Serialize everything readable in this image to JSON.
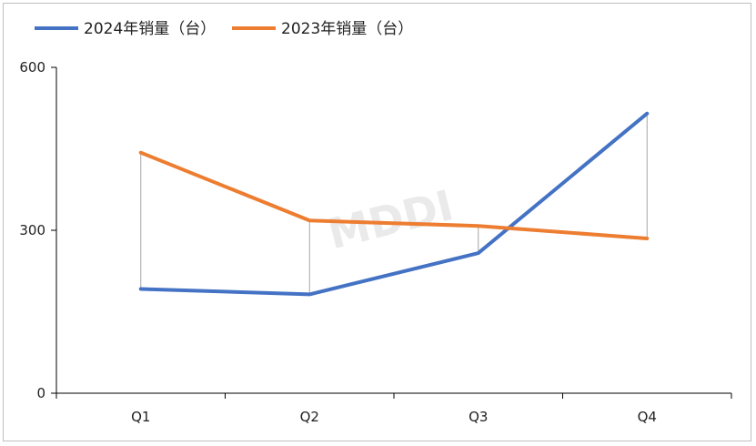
{
  "chart_data": {
    "type": "line",
    "categories": [
      "Q1",
      "Q2",
      "Q3",
      "Q4"
    ],
    "series": [
      {
        "name": "2024年销量（台）",
        "color": "#4472c4",
        "values": [
          192,
          182,
          258,
          515
        ]
      },
      {
        "name": "2023年销量（台）",
        "color": "#ed7d31",
        "values": [
          443,
          318,
          308,
          285
        ]
      }
    ],
    "ylim": [
      0,
      600
    ],
    "yticks": [
      0,
      300,
      600
    ],
    "drop_lines": true,
    "grid": false,
    "legend": "top-left",
    "watermark": "MDDI"
  }
}
